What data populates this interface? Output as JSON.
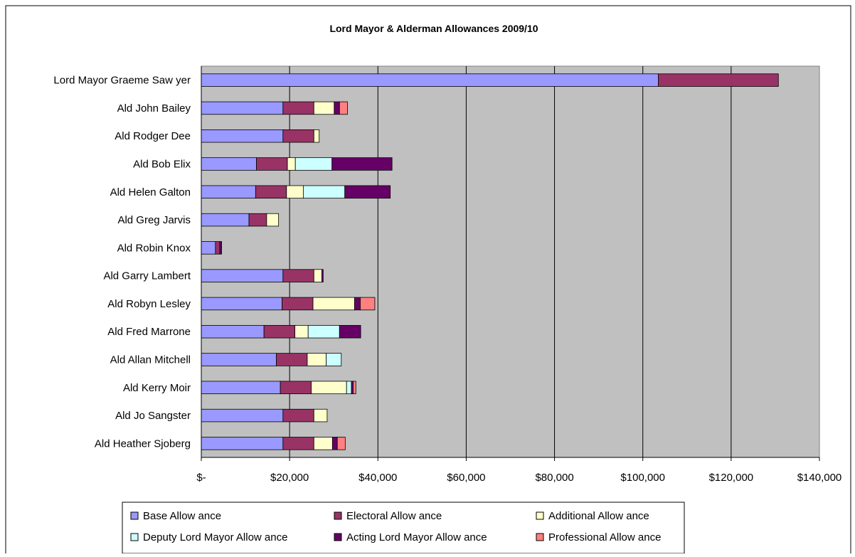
{
  "chart_data": {
    "type": "bar",
    "orientation": "horizontal",
    "stacked": true,
    "title": "Lord Mayor & Alderman Allowances 2009/10",
    "xlim": [
      0,
      140000
    ],
    "x_ticks": [
      0,
      20000,
      40000,
      60000,
      80000,
      100000,
      120000,
      140000
    ],
    "x_tick_labels": [
      "$-",
      "$20,000",
      "$40,000",
      "$60,000",
      "$80,000",
      "$100,000",
      "$120,000",
      "$140,000"
    ],
    "grid": "vertical",
    "legend_position": "bottom",
    "plot_background": "#c0c0c0",
    "categories": [
      "Lord Mayor Graeme Saw yer",
      "Ald John Bailey",
      "Ald Rodger Dee",
      "Ald Bob Elix",
      "Ald Helen Galton",
      "Ald Greg Jarvis",
      "Ald Robin Knox",
      "Ald Garry Lambert",
      "Ald Robyn Lesley",
      "Ald Fred Marrone",
      "Ald Allan Mitchell",
      "Ald Kerry Moir",
      "Ald Jo Sangster",
      "Ald Heather Sjoberg"
    ],
    "series": [
      {
        "name": "Base Allow ance",
        "color": "#9999ff",
        "values": [
          103500,
          18500,
          18500,
          12500,
          12300,
          10800,
          3200,
          18500,
          18300,
          14200,
          17000,
          17900,
          18500,
          18500
        ]
      },
      {
        "name": "Electoral Allow ance",
        "color": "#993366",
        "values": [
          27200,
          7000,
          7000,
          7000,
          7000,
          4000,
          1000,
          7000,
          7000,
          7000,
          7000,
          7000,
          7000,
          7000
        ]
      },
      {
        "name": "Additional Allow ance",
        "color": "#ffffcc",
        "values": [
          0,
          4600,
          1200,
          1800,
          3800,
          2700,
          0,
          1800,
          9400,
          3000,
          4300,
          8000,
          3000,
          4200
        ]
      },
      {
        "name": "Deputy Lord Mayor Allow ance",
        "color": "#ccffff",
        "values": [
          0,
          0,
          0,
          8300,
          9400,
          0,
          0,
          0,
          0,
          7100,
          3400,
          1100,
          0,
          0
        ]
      },
      {
        "name": "Acting Lord Mayor Allow ance",
        "color": "#660066",
        "values": [
          0,
          1200,
          0,
          13600,
          10300,
          0,
          400,
          300,
          1300,
          4800,
          0,
          400,
          0,
          1100
        ]
      },
      {
        "name": "Professional Allow ance",
        "color": "#ff8080",
        "values": [
          0,
          1800,
          0,
          0,
          0,
          0,
          0,
          0,
          3300,
          0,
          0,
          600,
          0,
          1800
        ]
      }
    ]
  }
}
